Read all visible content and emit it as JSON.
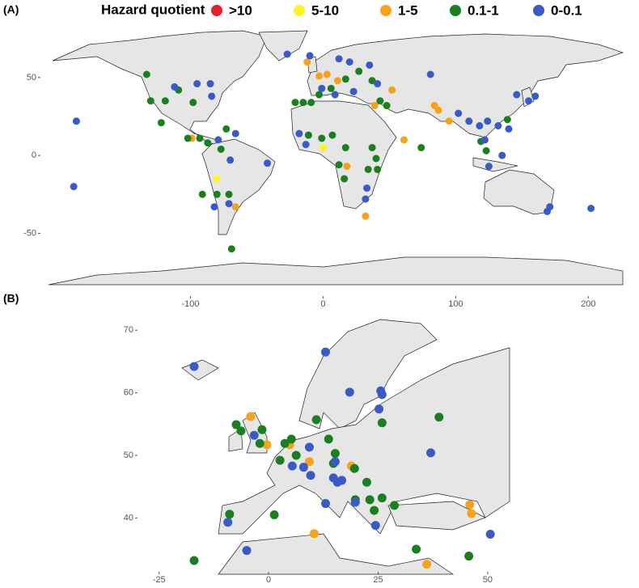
{
  "chart_data": [
    {
      "type": "scatter",
      "label": "(A)",
      "legend_title": "Hazard quotient",
      "xlim": [
        -207,
        226
      ],
      "ylim": [
        -83,
        79
      ],
      "xticks": [
        -100,
        0,
        100,
        200
      ],
      "yticks": [
        -50,
        0,
        50
      ],
      "series": [
        {
          "name": ">10",
          "color": "#e8202a",
          "x": [],
          "y": []
        },
        {
          "name": "5-10",
          "color": "#fdf326",
          "x": [
            -80,
            0
          ],
          "y": [
            -15,
            5
          ]
        },
        {
          "name": "1-5",
          "color": "#f7a21b",
          "x": [
            -3,
            3,
            11,
            39,
            52,
            84,
            87,
            95,
            -99,
            -66,
            18,
            61,
            32,
            -12
          ],
          "y": [
            51,
            52,
            48,
            32,
            42,
            32,
            29,
            22,
            11,
            -33,
            -7,
            10,
            -39,
            60
          ]
        },
        {
          "name": "0.1-1",
          "color": "#1a7f1f",
          "x": [
            -133,
            -109,
            -130,
            -119,
            -98,
            -122,
            -102,
            -93,
            -87,
            -77,
            -73,
            -21,
            -15,
            -9,
            -3,
            6,
            17,
            27,
            37,
            43,
            48,
            -11,
            -1,
            7,
            17,
            37,
            40,
            34,
            41,
            12,
            16,
            119,
            123,
            139,
            -71,
            -80,
            -91,
            -69,
            74
          ],
          "y": [
            52,
            42,
            35,
            35,
            34,
            21,
            11,
            11,
            8,
            4,
            17,
            34,
            34,
            34,
            39,
            43,
            49,
            54,
            48,
            35,
            32,
            13,
            11,
            13,
            5,
            5,
            -2,
            -9,
            -9,
            -6,
            -15,
            9,
            3,
            23,
            -25,
            -25,
            -25,
            -60,
            5
          ]
        },
        {
          "name": "0-0.1",
          "color": "#3a5bc7",
          "x": [
            -186,
            -188,
            -27,
            -112,
            -95,
            -85,
            -84,
            -66,
            -79,
            -70,
            -42,
            -82,
            -71,
            -10,
            12,
            20,
            35,
            41,
            23,
            81,
            -18,
            -13,
            33,
            32,
            102,
            110,
            118,
            124,
            132,
            140,
            146,
            155,
            160,
            122,
            135,
            125,
            171,
            169,
            202,
            -1,
            9
          ],
          "y": [
            22,
            -20,
            65,
            44,
            46,
            46,
            38,
            14,
            10,
            -3,
            -5,
            -33,
            -31,
            64,
            62,
            60,
            58,
            46,
            41,
            52,
            14,
            7,
            -21,
            -28,
            27,
            22,
            19,
            22,
            19,
            17,
            39,
            35,
            38,
            10,
            0,
            -7,
            -33,
            -36,
            -34,
            43,
            39
          ]
        }
      ]
    },
    {
      "type": "scatter",
      "label": "(B)",
      "xlim": [
        -29,
        55
      ],
      "ylim": [
        31,
        73
      ],
      "xticks": [
        -25,
        0,
        25,
        50
      ],
      "yticks": [
        40,
        50,
        60,
        70
      ],
      "series": [
        {
          "color": "#e8202a",
          "x": [],
          "y": []
        },
        {
          "color": "#fdf326",
          "x": [],
          "y": []
        },
        {
          "color": "#f7a21b",
          "x": [
            -4.1,
            -0.4,
            9.3,
            4.8,
            18.9,
            45.9,
            46.3,
            10.4,
            36.1
          ],
          "y": [
            56.2,
            51.7,
            49,
            51.7,
            48.3,
            42.1,
            40.7,
            37.5,
            32.6
          ]
        },
        {
          "color": "#1a7f1f",
          "x": [
            -7.4,
            -6.3,
            -1.5,
            -2,
            3.7,
            5.2,
            6.3,
            2.6,
            10.9,
            13.7,
            25.9,
            38.9,
            15.2,
            19.6,
            14.8,
            22.4,
            24.1,
            28.7,
            25.9,
            19.8,
            23.1,
            -8.9,
            1.3,
            -17,
            33.7,
            45.7
          ],
          "y": [
            54.9,
            53.9,
            54.1,
            51.9,
            51.9,
            52.6,
            50,
            49.2,
            55.7,
            52.6,
            55.2,
            56.1,
            50.3,
            47.9,
            48.7,
            45.7,
            41.2,
            42,
            43.2,
            42.9,
            42.9,
            40.6,
            40.5,
            33.2,
            35,
            33.9
          ]
        },
        {
          "color": "#3a5bc7",
          "x": [
            -17,
            13,
            18.5,
            25.6,
            25.9,
            25.2,
            -3.3,
            37,
            9.3,
            5.4,
            8,
            15.2,
            9.6,
            14.8,
            15.7,
            16.7,
            13,
            -9.3,
            -5,
            24.4,
            50.6,
            19.8
          ],
          "y": [
            64.2,
            66.5,
            60.1,
            60.3,
            59.7,
            57.4,
            53.2,
            50.4,
            51.3,
            48.3,
            48.1,
            49,
            46.8,
            46.4,
            45.7,
            46,
            42.3,
            39.3,
            34.8,
            38.8,
            37.4,
            42.5
          ]
        }
      ]
    }
  ]
}
